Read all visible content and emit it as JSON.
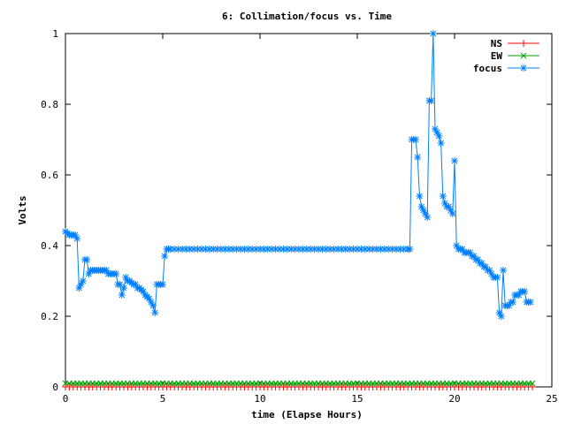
{
  "chart_data": {
    "type": "line",
    "title": "6: Collimation/focus vs. Time",
    "xlabel": "time (Elapse Hours)",
    "ylabel": "Volts",
    "xlim": [
      0,
      25
    ],
    "ylim": [
      0,
      1
    ],
    "xticks": [
      0,
      5,
      10,
      15,
      20,
      25
    ],
    "yticks": [
      0,
      0.2,
      0.4,
      0.6,
      0.8,
      1
    ],
    "xtick_labels": [
      "0",
      "5",
      "10",
      "15",
      "20",
      "25"
    ],
    "ytick_labels": [
      "0",
      "0.2",
      "0.4",
      "0.6",
      "0.8",
      "1"
    ],
    "grid": false,
    "legend_position": "top-right",
    "series": [
      {
        "name": "NS",
        "color": "#ff0000",
        "marker": "plus",
        "x": [
          0,
          24
        ],
        "y": [
          0.0,
          0.0
        ],
        "sample_step": 0.2
      },
      {
        "name": "EW",
        "color": "#00a000",
        "marker": "cross",
        "x": [
          0,
          24
        ],
        "y": [
          0.01,
          0.01
        ],
        "sample_step": 0.2
      },
      {
        "name": "focus",
        "color": "#0080ff",
        "marker": "star",
        "x": [
          0,
          0.1,
          0.2,
          0.3,
          0.4,
          0.5,
          0.6,
          0.7,
          0.8,
          0.9,
          1.0,
          1.1,
          1.2,
          1.3,
          1.4,
          1.5,
          1.6,
          1.7,
          1.8,
          1.9,
          2.0,
          2.1,
          2.2,
          2.3,
          2.4,
          2.5,
          2.6,
          2.7,
          2.8,
          2.9,
          3.0,
          3.1,
          3.2,
          3.3,
          3.4,
          3.5,
          3.6,
          3.7,
          3.8,
          3.9,
          4.0,
          4.1,
          4.2,
          4.3,
          4.4,
          4.5,
          4.6,
          4.7,
          4.8,
          4.9,
          5.0,
          5.1,
          5.2,
          5.3,
          5.4,
          5.6,
          17.6,
          17.7,
          17.8,
          17.9,
          18.0,
          18.1,
          18.2,
          18.3,
          18.4,
          18.5,
          18.6,
          18.7,
          18.8,
          18.9,
          19.0,
          19.1,
          19.2,
          19.3,
          19.4,
          19.5,
          19.6,
          19.7,
          19.8,
          19.9,
          20.0,
          20.1,
          20.2,
          20.3,
          20.4,
          20.5,
          20.6,
          20.7,
          20.8,
          20.9,
          21.0,
          21.1,
          21.2,
          21.3,
          21.4,
          21.5,
          21.6,
          21.7,
          21.8,
          21.9,
          22.0,
          22.1,
          22.2,
          22.3,
          22.4,
          22.5,
          22.6,
          22.7,
          22.8,
          22.9,
          23.0,
          23.1,
          23.2,
          23.3,
          23.4,
          23.5,
          23.6,
          23.7,
          23.8,
          23.9
        ],
        "y": [
          0.44,
          0.435,
          0.43,
          0.43,
          0.43,
          0.43,
          0.42,
          0.28,
          0.29,
          0.3,
          0.36,
          0.36,
          0.32,
          0.33,
          0.33,
          0.33,
          0.33,
          0.33,
          0.33,
          0.33,
          0.33,
          0.33,
          0.32,
          0.32,
          0.32,
          0.32,
          0.32,
          0.29,
          0.29,
          0.26,
          0.28,
          0.31,
          0.3,
          0.3,
          0.295,
          0.29,
          0.29,
          0.28,
          0.28,
          0.275,
          0.27,
          0.26,
          0.255,
          0.25,
          0.24,
          0.23,
          0.21,
          0.29,
          0.29,
          0.29,
          0.29,
          0.37,
          0.39,
          0.39,
          0.39,
          0.39,
          0.39,
          0.39,
          0.7,
          0.7,
          0.7,
          0.65,
          0.54,
          0.51,
          0.5,
          0.49,
          0.48,
          0.81,
          0.81,
          1.0,
          0.73,
          0.72,
          0.71,
          0.69,
          0.54,
          0.52,
          0.51,
          0.51,
          0.5,
          0.49,
          0.64,
          0.4,
          0.39,
          0.39,
          0.39,
          0.38,
          0.38,
          0.38,
          0.38,
          0.37,
          0.37,
          0.36,
          0.36,
          0.35,
          0.35,
          0.34,
          0.34,
          0.33,
          0.33,
          0.32,
          0.31,
          0.31,
          0.31,
          0.21,
          0.2,
          0.33,
          0.23,
          0.23,
          0.23,
          0.24,
          0.24,
          0.26,
          0.26,
          0.26,
          0.27,
          0.27,
          0.27,
          0.24,
          0.24,
          0.24
        ]
      }
    ]
  }
}
